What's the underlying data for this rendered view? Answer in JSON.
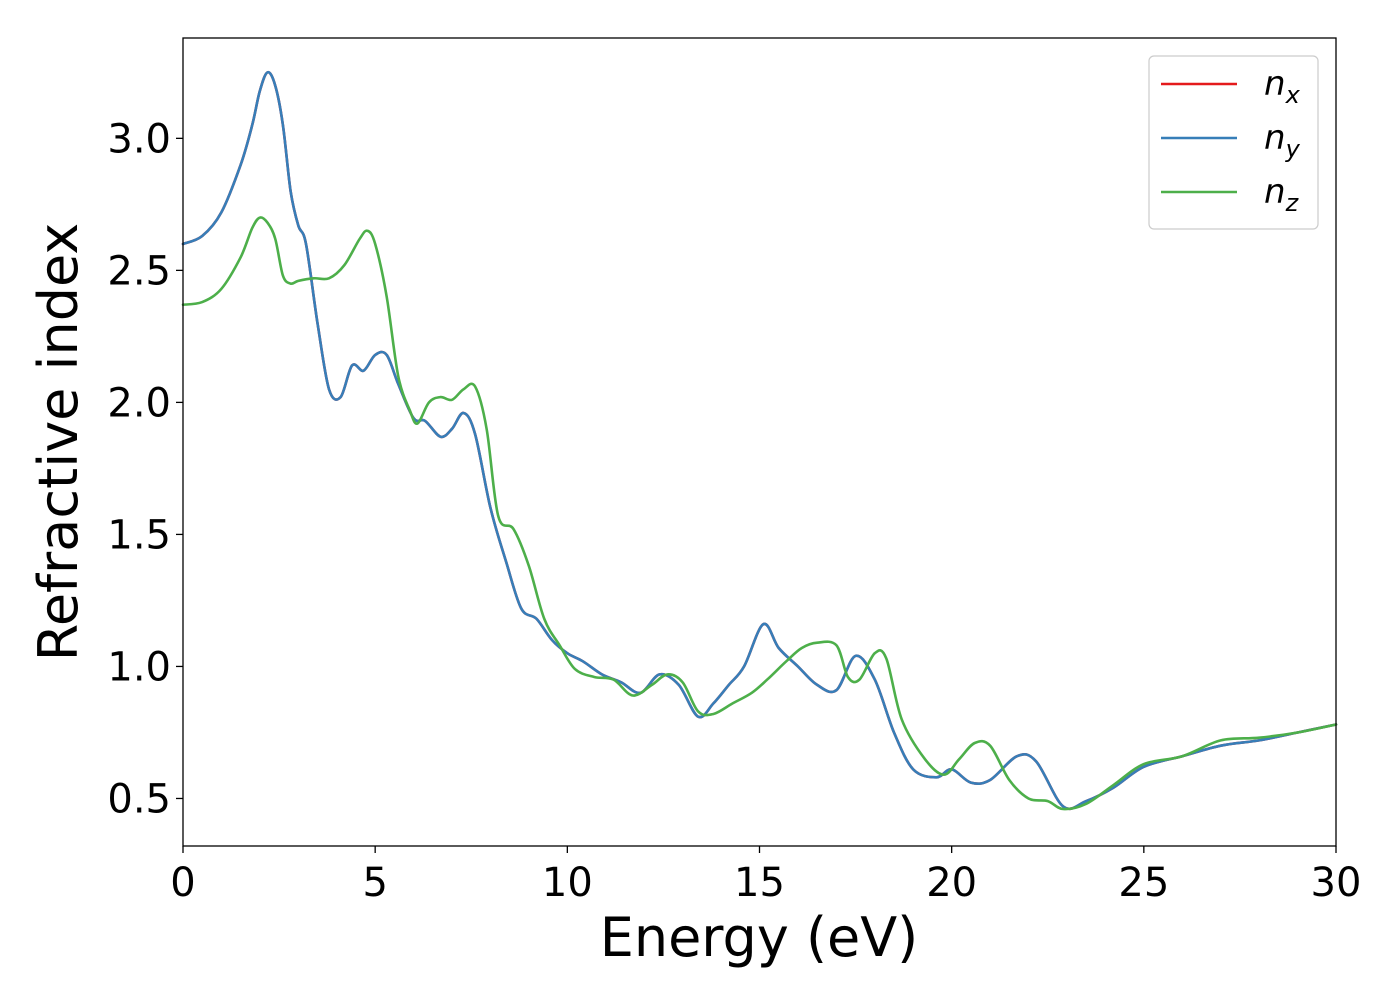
{
  "chart_data": {
    "type": "line",
    "title": "",
    "xlabel": "Energy (eV)",
    "ylabel": "Refractive index",
    "xlim": [
      0,
      30
    ],
    "ylim": [
      0.32,
      3.38
    ],
    "xticks": [
      0,
      5,
      10,
      15,
      20,
      25,
      30
    ],
    "xtick_labels": [
      "0",
      "5",
      "10",
      "15",
      "20",
      "25",
      "30"
    ],
    "yticks": [
      0.5,
      1.0,
      1.5,
      2.0,
      2.5,
      3.0
    ],
    "ytick_labels": [
      "0.5",
      "1.0",
      "1.5",
      "2.0",
      "2.5",
      "3.0"
    ],
    "grid": false,
    "legend_position": "top-right",
    "series": [
      {
        "name": "n",
        "subscript": "x",
        "color": "#e41a1c",
        "x": [
          0,
          0.5,
          1.0,
          1.5,
          1.8,
          2.0,
          2.2,
          2.4,
          2.6,
          2.8,
          3.0,
          3.2,
          3.5,
          3.8,
          4.1,
          4.4,
          4.7,
          5.0,
          5.3,
          5.6,
          6.0,
          6.3,
          6.7,
          7.0,
          7.3,
          7.6,
          8.0,
          8.4,
          8.8,
          9.2,
          9.6,
          10.0,
          10.4,
          10.9,
          11.4,
          11.9,
          12.4,
          12.9,
          13.4,
          13.8,
          14.2,
          14.6,
          15.1,
          15.5,
          16.0,
          16.5,
          17.0,
          17.5,
          18.0,
          18.5,
          19.0,
          19.6,
          20.0,
          20.5,
          21.0,
          21.7,
          22.2,
          22.9,
          23.5,
          24.2,
          25.0,
          26.0,
          27.0,
          28.0,
          29.0,
          30.0
        ],
        "y": [
          2.6,
          2.63,
          2.72,
          2.9,
          3.05,
          3.18,
          3.25,
          3.2,
          3.05,
          2.8,
          2.67,
          2.6,
          2.3,
          2.05,
          2.02,
          2.14,
          2.12,
          2.18,
          2.18,
          2.07,
          1.94,
          1.93,
          1.87,
          1.9,
          1.96,
          1.88,
          1.6,
          1.4,
          1.22,
          1.18,
          1.1,
          1.05,
          1.02,
          0.97,
          0.94,
          0.9,
          0.97,
          0.93,
          0.81,
          0.86,
          0.93,
          1.0,
          1.16,
          1.07,
          1.0,
          0.93,
          0.91,
          1.04,
          0.95,
          0.75,
          0.61,
          0.58,
          0.61,
          0.56,
          0.57,
          0.66,
          0.64,
          0.47,
          0.49,
          0.54,
          0.62,
          0.66,
          0.7,
          0.72,
          0.75,
          0.78
        ]
      },
      {
        "name": "n",
        "subscript": "y",
        "color": "#377eb8",
        "x": [
          0,
          0.5,
          1.0,
          1.5,
          1.8,
          2.0,
          2.2,
          2.4,
          2.6,
          2.8,
          3.0,
          3.2,
          3.5,
          3.8,
          4.1,
          4.4,
          4.7,
          5.0,
          5.3,
          5.6,
          6.0,
          6.3,
          6.7,
          7.0,
          7.3,
          7.6,
          8.0,
          8.4,
          8.8,
          9.2,
          9.6,
          10.0,
          10.4,
          10.9,
          11.4,
          11.9,
          12.4,
          12.9,
          13.4,
          13.8,
          14.2,
          14.6,
          15.1,
          15.5,
          16.0,
          16.5,
          17.0,
          17.5,
          18.0,
          18.5,
          19.0,
          19.6,
          20.0,
          20.5,
          21.0,
          21.7,
          22.2,
          22.9,
          23.5,
          24.2,
          25.0,
          26.0,
          27.0,
          28.0,
          29.0,
          30.0
        ],
        "y": [
          2.6,
          2.63,
          2.72,
          2.9,
          3.05,
          3.18,
          3.25,
          3.2,
          3.05,
          2.8,
          2.67,
          2.6,
          2.3,
          2.05,
          2.02,
          2.14,
          2.12,
          2.18,
          2.18,
          2.07,
          1.94,
          1.93,
          1.87,
          1.9,
          1.96,
          1.88,
          1.6,
          1.4,
          1.22,
          1.18,
          1.1,
          1.05,
          1.02,
          0.97,
          0.94,
          0.9,
          0.97,
          0.93,
          0.81,
          0.86,
          0.93,
          1.0,
          1.16,
          1.07,
          1.0,
          0.93,
          0.91,
          1.04,
          0.95,
          0.75,
          0.61,
          0.58,
          0.61,
          0.56,
          0.57,
          0.66,
          0.64,
          0.47,
          0.49,
          0.54,
          0.62,
          0.66,
          0.7,
          0.72,
          0.75,
          0.78
        ]
      },
      {
        "name": "n",
        "subscript": "z",
        "color": "#4daf4a",
        "x": [
          0,
          0.5,
          1.0,
          1.5,
          1.8,
          2.0,
          2.2,
          2.4,
          2.6,
          2.8,
          3.0,
          3.4,
          3.8,
          4.2,
          4.6,
          4.8,
          5.0,
          5.3,
          5.6,
          5.9,
          6.1,
          6.4,
          6.7,
          7.0,
          7.3,
          7.6,
          7.9,
          8.2,
          8.6,
          9.0,
          9.4,
          9.8,
          10.2,
          10.7,
          11.2,
          11.7,
          12.2,
          12.6,
          13.0,
          13.4,
          13.8,
          14.3,
          14.8,
          15.2,
          15.7,
          16.1,
          16.5,
          17.0,
          17.3,
          17.6,
          18.0,
          18.3,
          18.7,
          19.3,
          19.8,
          20.2,
          20.6,
          21.0,
          21.5,
          22.0,
          22.5,
          22.9,
          23.5,
          24.2,
          25.0,
          26.0,
          27.0,
          28.0,
          29.0,
          30.0
        ],
        "y": [
          2.37,
          2.38,
          2.43,
          2.55,
          2.66,
          2.7,
          2.68,
          2.62,
          2.48,
          2.45,
          2.46,
          2.47,
          2.47,
          2.52,
          2.62,
          2.65,
          2.6,
          2.4,
          2.1,
          1.97,
          1.92,
          2.0,
          2.02,
          2.01,
          2.05,
          2.06,
          1.9,
          1.57,
          1.52,
          1.38,
          1.18,
          1.08,
          0.99,
          0.96,
          0.95,
          0.89,
          0.93,
          0.97,
          0.94,
          0.83,
          0.82,
          0.86,
          0.9,
          0.95,
          1.02,
          1.07,
          1.09,
          1.08,
          0.96,
          0.95,
          1.05,
          1.03,
          0.8,
          0.65,
          0.59,
          0.65,
          0.71,
          0.7,
          0.57,
          0.5,
          0.49,
          0.46,
          0.48,
          0.55,
          0.63,
          0.66,
          0.72,
          0.73,
          0.75,
          0.78
        ]
      }
    ]
  }
}
